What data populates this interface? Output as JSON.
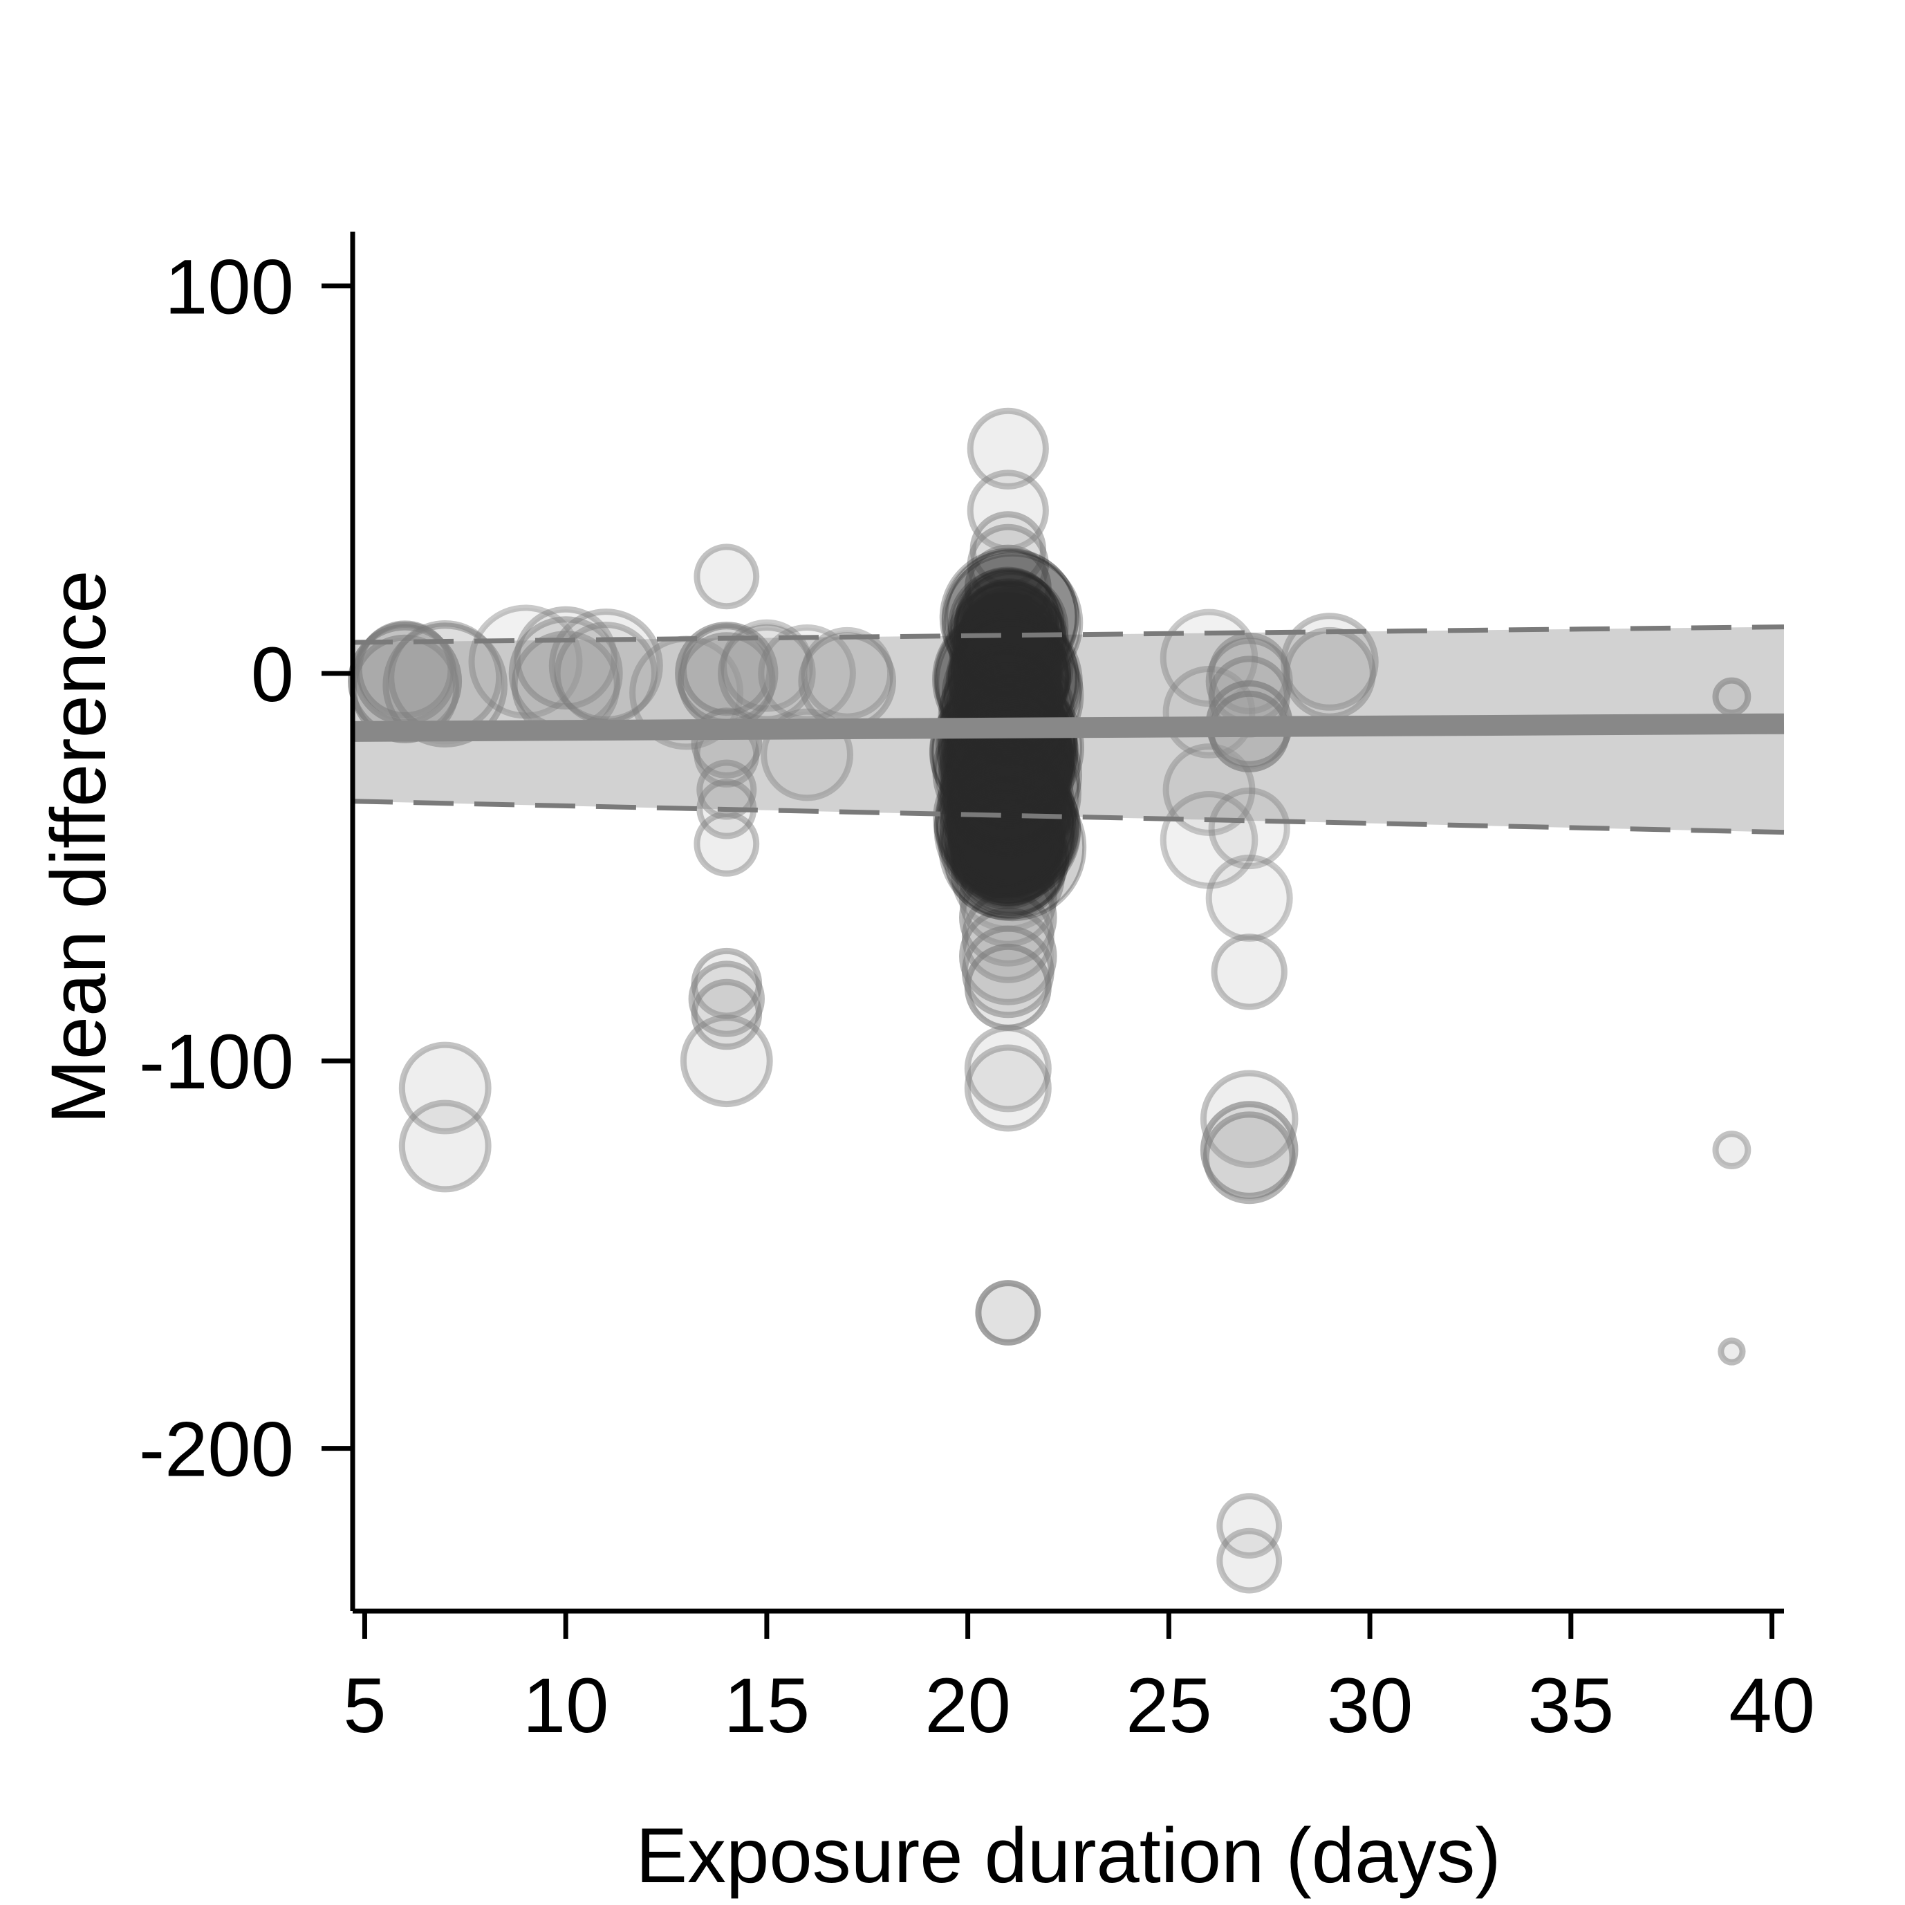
{
  "chart_data": {
    "type": "scatter",
    "title": "",
    "xlabel": "Exposure duration (days)",
    "ylabel": "Mean difference",
    "xlim": [
      4.7,
      40.3
    ],
    "ylim": [
      -242,
      114
    ],
    "xticks": [
      5,
      10,
      15,
      20,
      25,
      30,
      35,
      40
    ],
    "yticks": [
      100,
      0,
      -100,
      -200
    ],
    "grid": false,
    "legend": "none",
    "colors": {
      "marker_fill": "#9a9a9a",
      "marker_stroke": "#7a7a7a",
      "dense_cluster": "#2b2b2b",
      "ci_band": "#d0d0d0",
      "regression_line": "#888888",
      "ci_dash": "#7a7a7a",
      "axis": "#000000"
    },
    "regression": {
      "x": [
        4.7,
        40.3
      ],
      "y": [
        -15,
        -13
      ],
      "ci_lower": [
        -33,
        -41
      ],
      "ci_upper": [
        8,
        12
      ]
    },
    "points": [
      {
        "x": 6,
        "y": -2,
        "w": 1.0,
        "a": 0.55
      },
      {
        "x": 6,
        "y": 0,
        "w": 0.9,
        "a": 0.5
      },
      {
        "x": 6,
        "y": -4,
        "w": 0.95,
        "a": 0.45
      },
      {
        "x": 6,
        "y": 1,
        "w": 0.85,
        "a": 0.4
      },
      {
        "x": 7,
        "y": -3,
        "w": 1.1,
        "a": 0.35
      },
      {
        "x": 7,
        "y": -1,
        "w": 1.0,
        "a": 0.3
      },
      {
        "x": 7,
        "y": -107,
        "w": 0.8,
        "a": 0.3
      },
      {
        "x": 7,
        "y": -122,
        "w": 0.8,
        "a": 0.3
      },
      {
        "x": 9,
        "y": 3,
        "w": 1.0,
        "a": 0.25
      },
      {
        "x": 10,
        "y": 0,
        "w": 1.0,
        "a": 0.35
      },
      {
        "x": 10,
        "y": -3,
        "w": 0.95,
        "a": 0.35
      },
      {
        "x": 10,
        "y": 4,
        "w": 0.9,
        "a": 0.3
      },
      {
        "x": 11,
        "y": 2,
        "w": 1.0,
        "a": 0.3
      },
      {
        "x": 11,
        "y": 0,
        "w": 0.9,
        "a": 0.3
      },
      {
        "x": 13,
        "y": -5,
        "w": 1.0,
        "a": 0.25
      },
      {
        "x": 14,
        "y": 25,
        "w": 0.55,
        "a": 0.3
      },
      {
        "x": 14,
        "y": 0,
        "w": 0.9,
        "a": 0.45
      },
      {
        "x": 14,
        "y": -2,
        "w": 0.85,
        "a": 0.4
      },
      {
        "x": 14,
        "y": 1,
        "w": 0.8,
        "a": 0.4
      },
      {
        "x": 14,
        "y": -18,
        "w": 0.6,
        "a": 0.35
      },
      {
        "x": 14,
        "y": -21,
        "w": 0.55,
        "a": 0.3
      },
      {
        "x": 14,
        "y": -30,
        "w": 0.5,
        "a": 0.3
      },
      {
        "x": 14,
        "y": -35,
        "w": 0.5,
        "a": 0.3
      },
      {
        "x": 14,
        "y": -44,
        "w": 0.55,
        "a": 0.3
      },
      {
        "x": 14,
        "y": -80,
        "w": 0.6,
        "a": 0.35
      },
      {
        "x": 14,
        "y": -84,
        "w": 0.65,
        "a": 0.35
      },
      {
        "x": 14,
        "y": -88,
        "w": 0.6,
        "a": 0.35
      },
      {
        "x": 14,
        "y": -100,
        "w": 0.8,
        "a": 0.3
      },
      {
        "x": 15,
        "y": 0,
        "w": 0.85,
        "a": 0.3
      },
      {
        "x": 15,
        "y": 2,
        "w": 0.8,
        "a": 0.25
      },
      {
        "x": 16,
        "y": 0,
        "w": 0.85,
        "a": 0.25
      },
      {
        "x": 16,
        "y": -21,
        "w": 0.8,
        "a": 0.25
      },
      {
        "x": 17,
        "y": -2,
        "w": 0.85,
        "a": 0.3
      },
      {
        "x": 17,
        "y": 0,
        "w": 0.8,
        "a": 0.25
      },
      {
        "x": 21,
        "y": 58,
        "w": 0.7,
        "a": 0.3
      },
      {
        "x": 21,
        "y": 42,
        "w": 0.7,
        "a": 0.3
      },
      {
        "x": 21,
        "y": 32,
        "w": 0.65,
        "a": 0.35
      },
      {
        "x": 21,
        "y": 28,
        "w": 0.7,
        "a": 0.35
      },
      {
        "x": 21,
        "y": 22,
        "w": 0.75,
        "a": 0.4
      },
      {
        "x": 21,
        "y": -30,
        "w": 0.9,
        "a": 0.35
      },
      {
        "x": 21,
        "y": -36,
        "w": 0.85,
        "a": 0.35
      },
      {
        "x": 21,
        "y": -45,
        "w": 0.85,
        "a": 0.4
      },
      {
        "x": 21,
        "y": -52,
        "w": 1.0,
        "a": 0.3
      },
      {
        "x": 21,
        "y": -58,
        "w": 0.85,
        "a": 0.4
      },
      {
        "x": 21,
        "y": -63,
        "w": 0.85,
        "a": 0.4
      },
      {
        "x": 21,
        "y": -68,
        "w": 0.8,
        "a": 0.4
      },
      {
        "x": 21,
        "y": -73,
        "w": 0.85,
        "a": 0.4
      },
      {
        "x": 21,
        "y": -77,
        "w": 0.8,
        "a": 0.4
      },
      {
        "x": 21,
        "y": -81,
        "w": 0.75,
        "a": 0.45
      },
      {
        "x": 21,
        "y": -102,
        "w": 0.75,
        "a": 0.3
      },
      {
        "x": 21,
        "y": -107,
        "w": 0.75,
        "a": 0.3
      },
      {
        "x": 21,
        "y": -165,
        "w": 0.55,
        "a": 0.55
      },
      {
        "x": 26,
        "y": 4,
        "w": 0.85,
        "a": 0.25
      },
      {
        "x": 26,
        "y": -10,
        "w": 0.8,
        "a": 0.25
      },
      {
        "x": 26,
        "y": -30,
        "w": 0.8,
        "a": 0.25
      },
      {
        "x": 26,
        "y": -43,
        "w": 0.85,
        "a": 0.25
      },
      {
        "x": 27,
        "y": 0,
        "w": 0.7,
        "a": 0.35
      },
      {
        "x": 27,
        "y": -2,
        "w": 0.75,
        "a": 0.35
      },
      {
        "x": 27,
        "y": -6,
        "w": 0.7,
        "a": 0.4
      },
      {
        "x": 27,
        "y": -13,
        "w": 0.75,
        "a": 0.5
      },
      {
        "x": 27,
        "y": -15,
        "w": 0.7,
        "a": 0.5
      },
      {
        "x": 27,
        "y": -40,
        "w": 0.7,
        "a": 0.25
      },
      {
        "x": 27,
        "y": -58,
        "w": 0.75,
        "a": 0.25
      },
      {
        "x": 27,
        "y": -77,
        "w": 0.65,
        "a": 0.3
      },
      {
        "x": 27,
        "y": -115,
        "w": 0.85,
        "a": 0.3
      },
      {
        "x": 27,
        "y": -123,
        "w": 0.85,
        "a": 0.45
      },
      {
        "x": 27,
        "y": -125,
        "w": 0.8,
        "a": 0.4
      },
      {
        "x": 27,
        "y": -220,
        "w": 0.55,
        "a": 0.3
      },
      {
        "x": 27,
        "y": -229,
        "w": 0.55,
        "a": 0.3
      },
      {
        "x": 29,
        "y": 3,
        "w": 0.85,
        "a": 0.3
      },
      {
        "x": 29,
        "y": 0,
        "w": 0.8,
        "a": 0.3
      },
      {
        "x": 39,
        "y": -6,
        "w": 0.3,
        "a": 0.4
      },
      {
        "x": 39,
        "y": -123,
        "w": 0.3,
        "a": 0.3
      },
      {
        "x": 39,
        "y": -175,
        "w": 0.2,
        "a": 0.35
      }
    ],
    "clusters": [
      {
        "x": 21,
        "y_from": -48,
        "y_to": 15,
        "spread": 2.4,
        "count": 120
      }
    ]
  }
}
